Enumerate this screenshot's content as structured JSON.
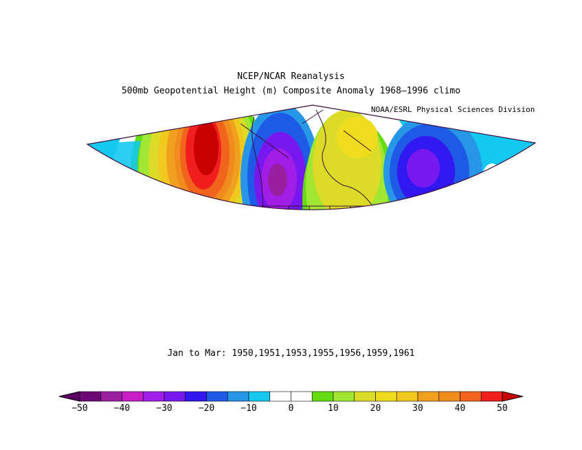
{
  "header": {
    "title": "NCEP/NCAR Reanalysis",
    "subtitle": "500mb Geopotential Height (m) Composite Anomaly 1968–1996 climo",
    "credit": "NOAA/ESRL Physical Sciences Division"
  },
  "footer": {
    "period": "Jan to Mar: 1950,1951,1953,1955,1956,1959,1961"
  },
  "colorbar": {
    "min": -50,
    "max": 50,
    "step": 5,
    "tick_labels": [
      "−50",
      "−40",
      "−30",
      "−20",
      "−10",
      "0",
      "10",
      "20",
      "30",
      "40",
      "50"
    ],
    "tick_values": [
      -50,
      -40,
      -30,
      -20,
      -10,
      0,
      10,
      20,
      30,
      40,
      50
    ],
    "colors": [
      "#6e0a76",
      "#9a1ea0",
      "#c81ec8",
      "#a01ee6",
      "#7818f0",
      "#3218f0",
      "#1e5ae6",
      "#2896e6",
      "#14c8f0",
      "#ffffff",
      "#ffffff",
      "#64dc14",
      "#a0e632",
      "#dcdc28",
      "#f0dc1e",
      "#f0c81e",
      "#f0a01e",
      "#f08c1e",
      "#f0641e",
      "#f01e1e"
    ],
    "under_color": "#5a0064",
    "over_color": "#c80000"
  }
}
